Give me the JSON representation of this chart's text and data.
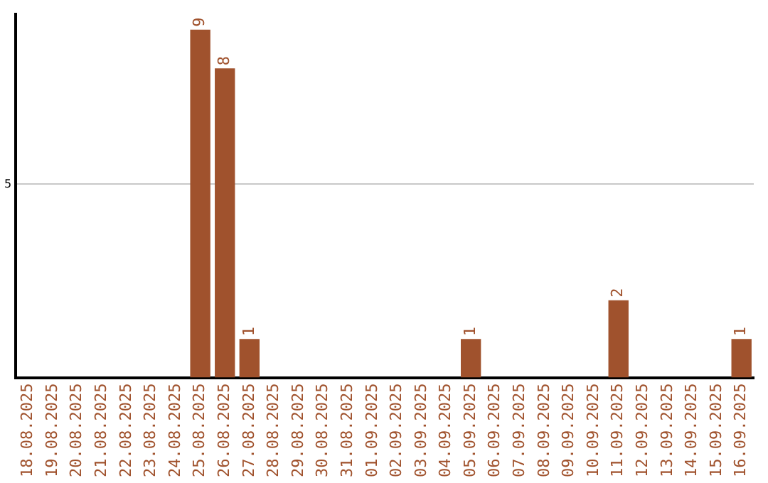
{
  "chart_data": {
    "type": "bar",
    "categories": [
      "18.08.2025",
      "19.08.2025",
      "20.08.2025",
      "21.08.2025",
      "22.08.2025",
      "23.08.2025",
      "24.08.2025",
      "25.08.2025",
      "26.08.2025",
      "27.08.2025",
      "28.08.2025",
      "29.08.2025",
      "30.08.2025",
      "31.08.2025",
      "01.09.2025",
      "02.09.2025",
      "03.09.2025",
      "04.09.2025",
      "05.09.2025",
      "06.09.2025",
      "07.09.2025",
      "08.09.2025",
      "09.09.2025",
      "10.09.2025",
      "11.09.2025",
      "12.09.2025",
      "13.09.2025",
      "14.09.2025",
      "15.09.2025",
      "16.09.2025"
    ],
    "values": [
      0,
      0,
      0,
      0,
      0,
      0,
      0,
      9,
      8,
      1,
      0,
      0,
      0,
      0,
      0,
      0,
      0,
      0,
      1,
      0,
      0,
      0,
      0,
      0,
      2,
      0,
      0,
      0,
      0,
      1
    ],
    "value_labels": [
      null,
      null,
      null,
      null,
      null,
      null,
      null,
      "9",
      "8",
      "1",
      null,
      null,
      null,
      null,
      null,
      null,
      null,
      null,
      "1",
      null,
      null,
      null,
      null,
      null,
      "2",
      null,
      null,
      null,
      null,
      "1"
    ],
    "color": "#a0522d",
    "ylim": [
      0,
      9.4
    ],
    "yticks": [
      5
    ],
    "grid": "y",
    "legend": false
  }
}
